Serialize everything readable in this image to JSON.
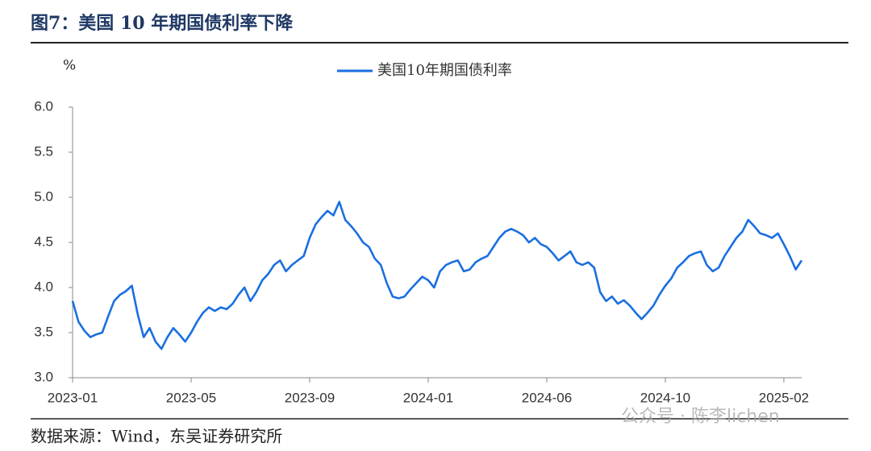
{
  "chart_data": {
    "type": "line",
    "title": "图7：美国 10 年期国债利率下降",
    "y_label": "%",
    "source": "数据来源：Wind，东吴证券研究所",
    "watermark": "公众号 · 陈李lichen",
    "x": [
      0,
      1,
      2,
      3,
      4,
      5,
      6,
      7,
      8,
      9,
      10,
      11,
      12,
      13,
      14,
      15,
      16,
      17,
      18,
      19,
      20,
      21,
      22,
      23,
      24,
      25,
      26,
      27,
      28,
      29,
      30,
      31,
      32,
      33,
      34,
      35,
      36,
      37,
      38,
      39,
      40,
      41,
      42,
      43,
      44,
      45,
      46,
      47,
      48,
      49,
      50,
      51,
      52,
      53,
      54,
      55,
      56,
      57,
      58,
      59,
      60,
      61,
      62,
      63,
      64,
      65,
      66,
      67,
      68,
      69,
      70,
      71,
      72,
      73,
      74,
      75,
      76,
      77,
      78,
      79,
      80,
      81,
      82,
      83,
      84,
      85,
      86,
      87,
      88,
      89,
      90,
      91,
      92,
      93,
      94,
      95,
      96,
      97,
      98,
      99,
      100,
      101,
      102,
      103,
      104,
      105,
      106,
      107,
      108,
      109,
      110,
      111,
      112,
      113,
      114,
      115,
      116,
      117,
      118,
      119,
      120,
      121,
      122,
      123
    ],
    "series": [
      {
        "name": "美国10年期国债利率",
        "color": "#1a6fe0",
        "values": [
          3.85,
          3.62,
          3.52,
          3.45,
          3.48,
          3.5,
          3.68,
          3.85,
          3.92,
          3.96,
          4.02,
          3.7,
          3.45,
          3.55,
          3.4,
          3.32,
          3.45,
          3.55,
          3.48,
          3.4,
          3.5,
          3.62,
          3.72,
          3.78,
          3.74,
          3.78,
          3.76,
          3.82,
          3.92,
          4.0,
          3.85,
          3.95,
          4.08,
          4.15,
          4.25,
          4.3,
          4.18,
          4.25,
          4.3,
          4.35,
          4.55,
          4.7,
          4.78,
          4.85,
          4.8,
          4.95,
          4.75,
          4.68,
          4.6,
          4.5,
          4.45,
          4.32,
          4.25,
          4.05,
          3.9,
          3.88,
          3.9,
          3.98,
          4.05,
          4.12,
          4.08,
          4.0,
          4.18,
          4.25,
          4.28,
          4.3,
          4.18,
          4.2,
          4.28,
          4.32,
          4.35,
          4.45,
          4.55,
          4.62,
          4.65,
          4.62,
          4.58,
          4.5,
          4.55,
          4.48,
          4.45,
          4.38,
          4.3,
          4.35,
          4.4,
          4.28,
          4.25,
          4.28,
          4.22,
          3.95,
          3.85,
          3.9,
          3.82,
          3.86,
          3.8,
          3.72,
          3.65,
          3.72,
          3.8,
          3.92,
          4.02,
          4.1,
          4.22,
          4.28,
          4.35,
          4.38,
          4.4,
          4.25,
          4.18,
          4.22,
          4.35,
          4.45,
          4.55,
          4.62,
          4.75,
          4.68,
          4.6,
          4.58,
          4.55,
          4.6,
          4.48,
          4.35,
          4.2,
          4.3
        ]
      }
    ],
    "xlim": [
      0,
      123
    ],
    "xticks": [
      {
        "value": 0,
        "label": "2023-01"
      },
      {
        "value": 20,
        "label": "2023-05"
      },
      {
        "value": 40,
        "label": "2023-09"
      },
      {
        "value": 60,
        "label": "2024-01"
      },
      {
        "value": 80,
        "label": "2024-06"
      },
      {
        "value": 100,
        "label": "2024-10"
      },
      {
        "value": 120,
        "label": "2025-02"
      }
    ],
    "ylim": [
      3,
      6
    ],
    "yticks": [
      {
        "value": 3,
        "label": "3.0"
      },
      {
        "value": 3.5,
        "label": "3.5"
      },
      {
        "value": 4,
        "label": "4.0"
      },
      {
        "value": 4.5,
        "label": "4.5"
      },
      {
        "value": 5,
        "label": "5.0"
      },
      {
        "value": 5.5,
        "label": "5.5"
      },
      {
        "value": 6,
        "label": "6.0"
      }
    ],
    "grid": false,
    "legend": "top"
  }
}
